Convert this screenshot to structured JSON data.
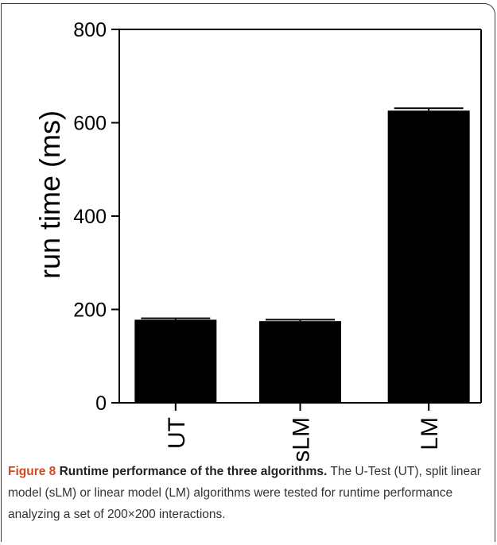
{
  "chart_data": {
    "type": "bar",
    "categories": [
      "UT",
      "sLM",
      "LM"
    ],
    "values": [
      178,
      175,
      626
    ],
    "errors": [
      3,
      3,
      5
    ],
    "ylabel": "run time (ms)",
    "xlabel": "",
    "ylim": [
      0,
      800
    ],
    "yticks": [
      0,
      200,
      400,
      600,
      800
    ],
    "grid": false,
    "bar_color": "#000000"
  },
  "caption": {
    "figure_label": "Figure 8",
    "title": " Runtime performance of the three algorithms.",
    "text": " The U-Test (UT), split linear model (sLM) or linear model (LM) algorithms were tested for runtime performance analyzing a set of 200×200 interactions."
  }
}
